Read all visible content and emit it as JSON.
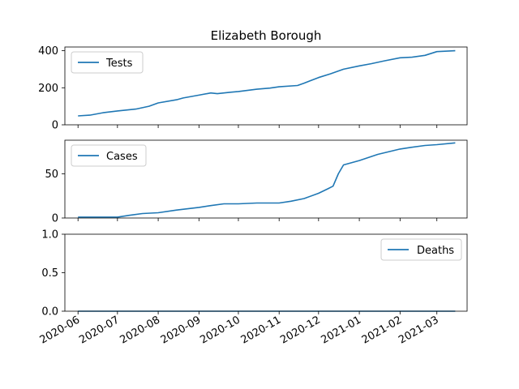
{
  "chart_data": {
    "title": "Elizabeth Borough",
    "type": "line",
    "x_ticks": [
      "2020-06",
      "2020-07",
      "2020-08",
      "2020-09",
      "2020-10",
      "2020-11",
      "2020-12",
      "2021-01",
      "2021-02",
      "2021-03"
    ],
    "line_color": "#1f77b4",
    "panels": [
      {
        "name": "tests",
        "type": "line",
        "legend_placement": "upper-left",
        "grid": false,
        "ylim": [
          0,
          420
        ],
        "yticks": [
          0,
          200,
          400
        ],
        "series": [
          {
            "name": "Tests",
            "x": [
              "2020-06-01",
              "2020-06-10",
              "2020-06-20",
              "2020-07-01",
              "2020-07-15",
              "2020-07-25",
              "2020-08-01",
              "2020-08-15",
              "2020-08-20",
              "2020-09-01",
              "2020-09-10",
              "2020-09-15",
              "2020-09-25",
              "2020-10-01",
              "2020-10-15",
              "2020-10-25",
              "2020-11-01",
              "2020-11-15",
              "2020-11-20",
              "2020-12-01",
              "2020-12-10",
              "2020-12-20",
              "2021-01-01",
              "2021-01-10",
              "2021-01-20",
              "2021-02-01",
              "2021-02-10",
              "2021-02-20",
              "2021-03-01",
              "2021-03-15"
            ],
            "y": [
              48,
              52,
              65,
              75,
              85,
              100,
              118,
              135,
              145,
              160,
              172,
              168,
              176,
              180,
              192,
              198,
              205,
              212,
              225,
              255,
              275,
              300,
              318,
              330,
              345,
              362,
              365,
              375,
              395,
              400
            ]
          }
        ]
      },
      {
        "name": "cases",
        "type": "line",
        "legend_placement": "upper-left",
        "grid": false,
        "ylim": [
          0,
          88
        ],
        "yticks": [
          0,
          50
        ],
        "series": [
          {
            "name": "Cases",
            "x": [
              "2020-06-01",
              "2020-06-15",
              "2020-07-01",
              "2020-07-10",
              "2020-07-20",
              "2020-08-01",
              "2020-08-15",
              "2020-09-01",
              "2020-09-10",
              "2020-09-20",
              "2020-10-01",
              "2020-10-15",
              "2020-11-01",
              "2020-11-10",
              "2020-11-20",
              "2020-12-01",
              "2020-12-08",
              "2020-12-12",
              "2020-12-16",
              "2020-12-20",
              "2021-01-01",
              "2021-01-15",
              "2021-02-01",
              "2021-02-10",
              "2021-02-20",
              "2021-03-01",
              "2021-03-15"
            ],
            "y": [
              1,
              1,
              1,
              3,
              5,
              6,
              9,
              12,
              14,
              16,
              16,
              17,
              17,
              19,
              22,
              28,
              33,
              36,
              50,
              60,
              65,
              72,
              78,
              80,
              82,
              83,
              85
            ]
          }
        ]
      },
      {
        "name": "deaths",
        "type": "line",
        "legend_placement": "upper-right",
        "grid": false,
        "ylim": [
          0,
          1
        ],
        "yticks": [
          0.0,
          0.5,
          1.0
        ],
        "ytick_labels": [
          "0.0",
          "0.5",
          "1.0"
        ],
        "series": [
          {
            "name": "Deaths",
            "x": [
              "2020-06-01",
              "2021-03-15"
            ],
            "y": [
              0,
              0
            ]
          }
        ]
      }
    ]
  }
}
